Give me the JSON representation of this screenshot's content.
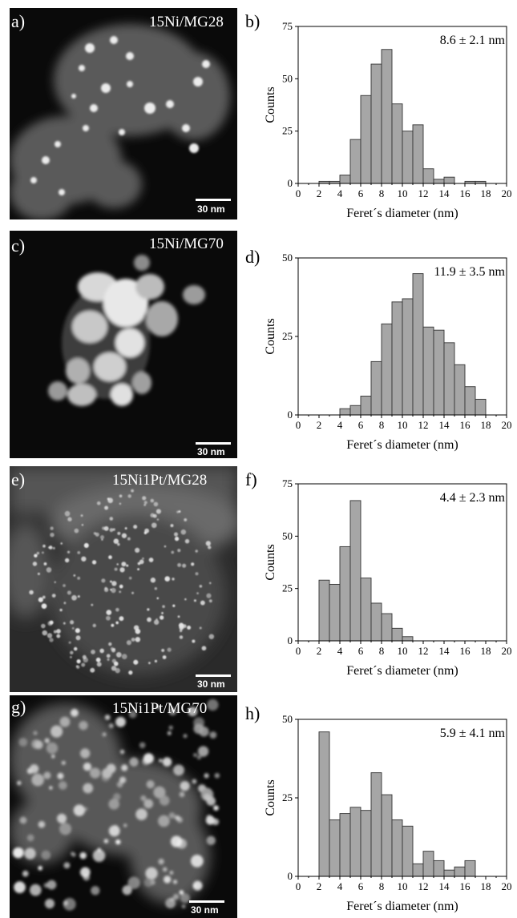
{
  "panels": [
    {
      "letter": "a)",
      "label": "15Ni/MG28",
      "scalebar": "30 nm"
    },
    {
      "letter": "c)",
      "label": "15Ni/MG70",
      "scalebar": "30 nm"
    },
    {
      "letter": "e)",
      "label": "15Ni1Pt/MG28",
      "scalebar": "30 nm"
    },
    {
      "letter": "g)",
      "label": "15Ni1Pt/MG70",
      "scalebar": "30 nm"
    }
  ],
  "chart_data": [
    {
      "type": "bar",
      "panel": "b)",
      "annotation": "8.6 ± 2.1 nm",
      "xlabel": "Feret´s diameter (nm)",
      "ylabel": "Counts",
      "xlim": [
        0,
        20
      ],
      "ylim": [
        0,
        75
      ],
      "xticks": [
        0,
        2,
        4,
        6,
        8,
        10,
        12,
        14,
        16,
        18,
        20
      ],
      "yticks": [
        0,
        25,
        50,
        75
      ],
      "bin_width": 1,
      "bins": [
        {
          "x": 2,
          "count": 1
        },
        {
          "x": 3,
          "count": 1
        },
        {
          "x": 4,
          "count": 4
        },
        {
          "x": 5,
          "count": 21
        },
        {
          "x": 6,
          "count": 42
        },
        {
          "x": 7,
          "count": 57
        },
        {
          "x": 8,
          "count": 64
        },
        {
          "x": 9,
          "count": 38
        },
        {
          "x": 10,
          "count": 25
        },
        {
          "x": 11,
          "count": 28
        },
        {
          "x": 12,
          "count": 7
        },
        {
          "x": 13,
          "count": 2
        },
        {
          "x": 14,
          "count": 3
        },
        {
          "x": 15,
          "count": 0
        },
        {
          "x": 16,
          "count": 1
        },
        {
          "x": 17,
          "count": 1
        }
      ]
    },
    {
      "type": "bar",
      "panel": "d)",
      "annotation": "11.9 ± 3.5 nm",
      "xlabel": "Feret´s diameter (nm)",
      "ylabel": "Counts",
      "xlim": [
        0,
        20
      ],
      "ylim": [
        0,
        50
      ],
      "xticks": [
        0,
        2,
        4,
        6,
        8,
        10,
        12,
        14,
        16,
        18,
        20
      ],
      "yticks": [
        0,
        25,
        50
      ],
      "bin_width": 1,
      "bins": [
        {
          "x": 4,
          "count": 2
        },
        {
          "x": 5,
          "count": 3
        },
        {
          "x": 6,
          "count": 6
        },
        {
          "x": 7,
          "count": 17
        },
        {
          "x": 8,
          "count": 29
        },
        {
          "x": 9,
          "count": 36
        },
        {
          "x": 10,
          "count": 37
        },
        {
          "x": 11,
          "count": 45
        },
        {
          "x": 12,
          "count": 28
        },
        {
          "x": 13,
          "count": 27
        },
        {
          "x": 14,
          "count": 23
        },
        {
          "x": 15,
          "count": 16
        },
        {
          "x": 16,
          "count": 9
        },
        {
          "x": 17,
          "count": 5
        }
      ]
    },
    {
      "type": "bar",
      "panel": "f)",
      "annotation": "4.4 ± 2.3 nm",
      "xlabel": "Feret´s diameter (nm)",
      "ylabel": "Counts",
      "xlim": [
        0,
        20
      ],
      "ylim": [
        0,
        75
      ],
      "xticks": [
        0,
        2,
        4,
        6,
        8,
        10,
        12,
        14,
        16,
        18,
        20
      ],
      "yticks": [
        0,
        25,
        50,
        75
      ],
      "bin_width": 1,
      "bins": [
        {
          "x": 2,
          "count": 29
        },
        {
          "x": 3,
          "count": 27
        },
        {
          "x": 4,
          "count": 45
        },
        {
          "x": 5,
          "count": 67
        },
        {
          "x": 6,
          "count": 30
        },
        {
          "x": 7,
          "count": 18
        },
        {
          "x": 8,
          "count": 13
        },
        {
          "x": 9,
          "count": 6
        },
        {
          "x": 10,
          "count": 2
        }
      ]
    },
    {
      "type": "bar",
      "panel": "h)",
      "annotation": "5.9 ± 4.1 nm",
      "xlabel": "Feret´s diameter (nm)",
      "ylabel": "Counts",
      "xlim": [
        0,
        20
      ],
      "ylim": [
        0,
        50
      ],
      "xticks": [
        0,
        2,
        4,
        6,
        8,
        10,
        12,
        14,
        16,
        18,
        20
      ],
      "yticks": [
        0,
        25,
        50
      ],
      "bin_width": 1,
      "bins": [
        {
          "x": 2,
          "count": 46
        },
        {
          "x": 3,
          "count": 18
        },
        {
          "x": 4,
          "count": 20
        },
        {
          "x": 5,
          "count": 22
        },
        {
          "x": 6,
          "count": 21
        },
        {
          "x": 7,
          "count": 33
        },
        {
          "x": 8,
          "count": 26
        },
        {
          "x": 9,
          "count": 18
        },
        {
          "x": 10,
          "count": 16
        },
        {
          "x": 11,
          "count": 4
        },
        {
          "x": 12,
          "count": 8
        },
        {
          "x": 13,
          "count": 5
        },
        {
          "x": 14,
          "count": 2
        },
        {
          "x": 15,
          "count": 3
        },
        {
          "x": 16,
          "count": 5
        }
      ]
    }
  ],
  "colors": {
    "bar_fill": "#a6a6a6",
    "bar_stroke": "#333333",
    "stem_bg": "#0a0a0a",
    "axis": "#000000"
  }
}
